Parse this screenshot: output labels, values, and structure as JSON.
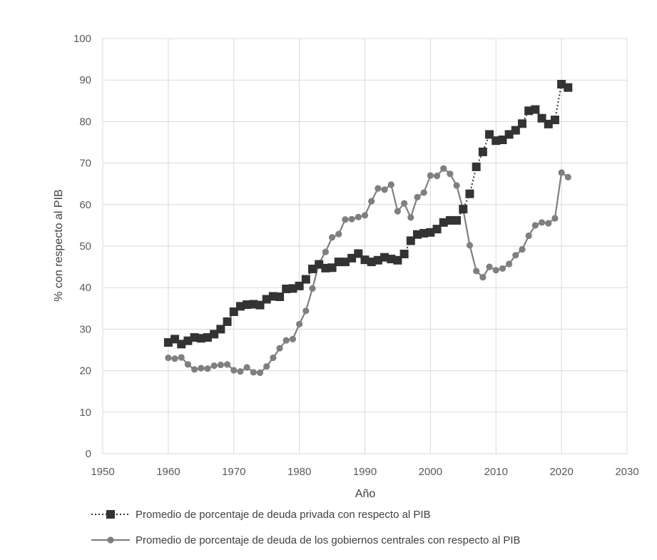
{
  "chart_data": {
    "type": "line",
    "xlabel": "Año",
    "ylabel": "% con respecto al PIB",
    "xlim": [
      1950,
      2030
    ],
    "ylim": [
      0,
      100
    ],
    "xticks": [
      "1950",
      "1960",
      "1970",
      "1980",
      "1990",
      "2000",
      "2010",
      "2020",
      "2030"
    ],
    "yticks": [
      "0",
      "10",
      "20",
      "30",
      "40",
      "50",
      "60",
      "70",
      "80",
      "90",
      "100"
    ],
    "grid": true,
    "legend_position": "bottom",
    "series": [
      {
        "name": "Promedio de porcentaje de deuda privada con respecto al PIB",
        "marker": "square",
        "line_style": "dotted",
        "color": "#333333",
        "x": [
          1960,
          1961,
          1962,
          1963,
          1964,
          1965,
          1966,
          1967,
          1968,
          1969,
          1970,
          1971,
          1972,
          1973,
          1974,
          1975,
          1976,
          1977,
          1978,
          1979,
          1980,
          1981,
          1982,
          1983,
          1984,
          1985,
          1986,
          1987,
          1988,
          1989,
          1990,
          1991,
          1992,
          1993,
          1994,
          1995,
          1996,
          1997,
          1998,
          1999,
          2000,
          2001,
          2002,
          2003,
          2004,
          2005,
          2006,
          2007,
          2008,
          2009,
          2010,
          2011,
          2012,
          2013,
          2014,
          2015,
          2016,
          2017,
          2018,
          2019,
          2020,
          2021
        ],
        "values": [
          26.8,
          27.6,
          26.4,
          27.2,
          28.0,
          27.8,
          28.0,
          28.8,
          30.0,
          31.8,
          34.2,
          35.5,
          35.9,
          36.0,
          35.8,
          37.2,
          37.9,
          37.8,
          39.7,
          39.8,
          40.4,
          42.0,
          44.5,
          45.6,
          44.7,
          44.8,
          46.2,
          46.2,
          47.1,
          48.2,
          46.7,
          46.2,
          46.6,
          47.3,
          46.9,
          46.6,
          48.1,
          51.3,
          52.8,
          53.1,
          53.3,
          54.1,
          55.7,
          56.2,
          56.2,
          58.9,
          62.6,
          69.1,
          72.7,
          76.9,
          75.4,
          75.6,
          76.9,
          77.9,
          79.5,
          82.6,
          82.9,
          80.8,
          79.4,
          80.4,
          89.0,
          88.2
        ]
      },
      {
        "name": "Promedio de porcentaje de deuda de los gobiernos centrales con respecto al PIB",
        "marker": "circle",
        "line_style": "solid",
        "color": "#7f7f7f",
        "x": [
          1960,
          1961,
          1962,
          1963,
          1964,
          1965,
          1966,
          1967,
          1968,
          1969,
          1970,
          1971,
          1972,
          1973,
          1974,
          1975,
          1976,
          1977,
          1978,
          1979,
          1980,
          1981,
          1982,
          1983,
          1984,
          1985,
          1986,
          1987,
          1988,
          1989,
          1990,
          1991,
          1992,
          1993,
          1994,
          1995,
          1996,
          1997,
          1998,
          1999,
          2000,
          2001,
          2002,
          2003,
          2004,
          2005,
          2006,
          2007,
          2008,
          2009,
          2010,
          2011,
          2012,
          2013,
          2014,
          2015,
          2016,
          2017,
          2018,
          2019,
          2020,
          2021
        ],
        "values": [
          23.1,
          22.9,
          23.2,
          21.5,
          20.3,
          20.6,
          20.5,
          21.2,
          21.4,
          21.5,
          20.1,
          19.8,
          20.8,
          19.6,
          19.5,
          21.0,
          23.1,
          25.4,
          27.3,
          27.6,
          31.2,
          34.4,
          39.8,
          45.9,
          48.6,
          52.1,
          52.9,
          56.4,
          56.5,
          57.0,
          57.4,
          60.8,
          63.9,
          63.6,
          64.8,
          58.4,
          60.3,
          56.9,
          61.8,
          62.9,
          67.0,
          66.9,
          68.7,
          67.4,
          64.6,
          58.8,
          50.2,
          44.0,
          42.5,
          45.0,
          44.2,
          44.6,
          45.7,
          47.8,
          49.2,
          52.5,
          55.0,
          55.7,
          55.5,
          56.7,
          67.7,
          66.6
        ]
      }
    ]
  }
}
